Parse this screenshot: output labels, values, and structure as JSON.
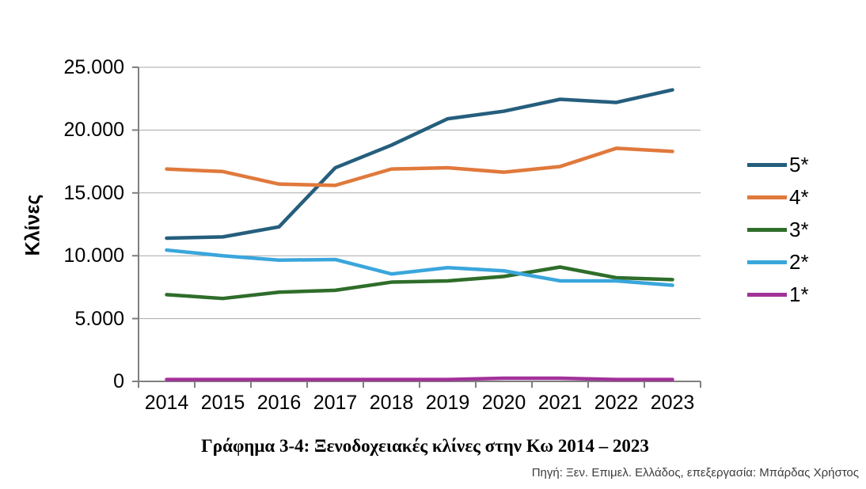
{
  "title": "Γράφημα 3-4: Ξενοδοχειακές κλίνες στην Κω 2014 – 2023",
  "source_note": "Πηγή: Ξεν. Επιμελ. Ελλάδος, επεξεργασία: Μπάρδας Χρήστος",
  "chart_data": {
    "type": "line",
    "title": "Γράφημα 3-4: Ξενοδοχειακές κλίνες στην Κω 2014 – 2023",
    "xlabel": "",
    "ylabel": "Κλίνες",
    "ylim": [
      0,
      25000
    ],
    "ytick_interval": 5000,
    "ytick_labels": [
      "0",
      "5.000",
      "10.000",
      "15.000",
      "20.000",
      "25.000"
    ],
    "grid": "horizontal",
    "legend_position": "right-center",
    "categories": [
      "2014",
      "2015",
      "2016",
      "2017",
      "2018",
      "2019",
      "2020",
      "2021",
      "2022",
      "2023"
    ],
    "series": [
      {
        "name": "5*",
        "color": "#255E7D",
        "values": [
          11400,
          11500,
          12300,
          17000,
          18800,
          20900,
          21500,
          22450,
          22200,
          23200
        ]
      },
      {
        "name": "4*",
        "color": "#E0793C",
        "values": [
          16900,
          16700,
          15700,
          15600,
          16900,
          17000,
          16650,
          17100,
          18550,
          18300
        ]
      },
      {
        "name": "3*",
        "color": "#2E6D2A",
        "values": [
          6900,
          6600,
          7100,
          7250,
          7900,
          8000,
          8350,
          9100,
          8250,
          8100
        ]
      },
      {
        "name": "2*",
        "color": "#3AA6DC",
        "values": [
          10450,
          10000,
          9650,
          9700,
          8550,
          9050,
          8800,
          8000,
          8000,
          7650
        ]
      },
      {
        "name": "1*",
        "color": "#A23299",
        "values": [
          150,
          150,
          150,
          150,
          150,
          150,
          250,
          250,
          150,
          150
        ]
      }
    ]
  }
}
